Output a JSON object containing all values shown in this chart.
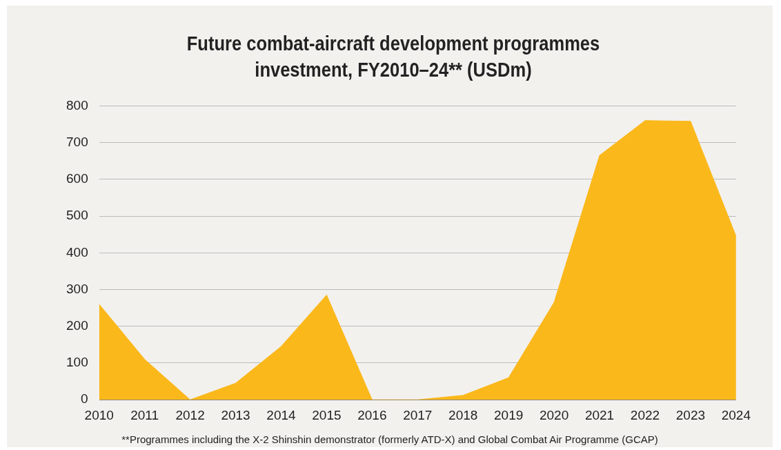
{
  "chart_data": {
    "type": "area",
    "title": "Future combat-aircraft development programmes investment, FY2010–24** (USDm)",
    "categories": [
      "2010",
      "2011",
      "2012",
      "2013",
      "2014",
      "2015",
      "2016",
      "2017",
      "2018",
      "2019",
      "2020",
      "2021",
      "2022",
      "2023",
      "2024"
    ],
    "series": [
      {
        "color": "#fbb81b",
        "values": [
          260,
          110,
          0,
          45,
          145,
          285,
          0,
          0,
          12,
          60,
          265,
          665,
          760,
          758,
          445
        ]
      }
    ],
    "ylim": [
      0,
      800
    ],
    "yticks": [
      0,
      100,
      200,
      300,
      400,
      500,
      600,
      700,
      800
    ],
    "grid": "y",
    "legend": false,
    "annotations": [
      "**Programmes including the X-2 Shinshin demonstrator (formerly ATD-X) and Global Combat Air Programme (GCAP)"
    ]
  }
}
